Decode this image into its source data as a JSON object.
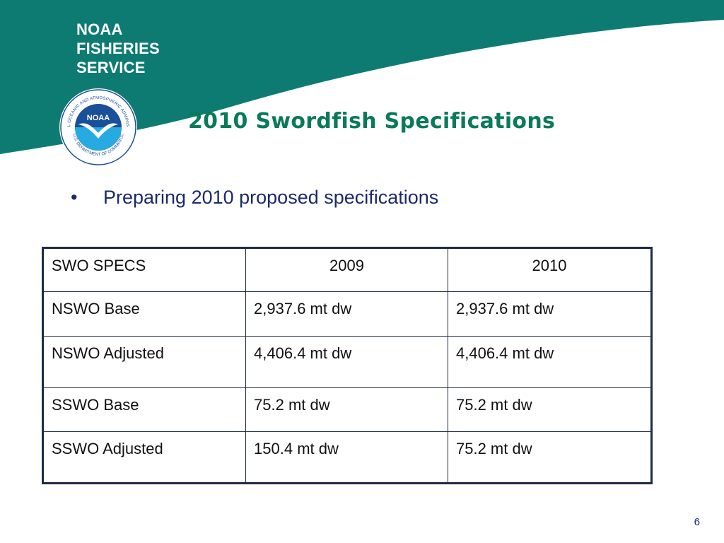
{
  "brand": {
    "lines": [
      "NOAA",
      "FISHERIES",
      "SERVICE"
    ],
    "colors": {
      "banner": "#0e7b72",
      "white": "#ffffff"
    }
  },
  "seal": {
    "ring_text": "NATIONAL OCEANIC AND ATMOSPHERIC ADMINISTRATION",
    "bottom_text": "U.S. DEPARTMENT OF COMMERCE",
    "center": "NOAA",
    "icon": "noaa-seal-icon"
  },
  "slide": {
    "title": "2010 Swordfish Specifications",
    "bullet_symbol": "•",
    "bullet_text": "Preparing 2010 proposed specifications",
    "page_number": "6"
  },
  "table": {
    "header": [
      "SWO SPECS",
      "2009",
      "2010"
    ],
    "rows": [
      [
        "NSWO Base",
        "2,937.6 mt dw",
        "2,937.6 mt dw"
      ],
      [
        "NSWO Adjusted",
        "4,406.4 mt dw",
        "4,406.4 mt dw"
      ],
      [
        "SSWO Base",
        "75.2 mt dw",
        "75.2 mt dw"
      ],
      [
        "SSWO Adjusted",
        "150.4 mt dw",
        "75.2 mt dw"
      ]
    ]
  },
  "colors": {
    "title": "#0a7a5a",
    "bullet": "#1a2a6a",
    "table_border": "#1f2a44"
  }
}
